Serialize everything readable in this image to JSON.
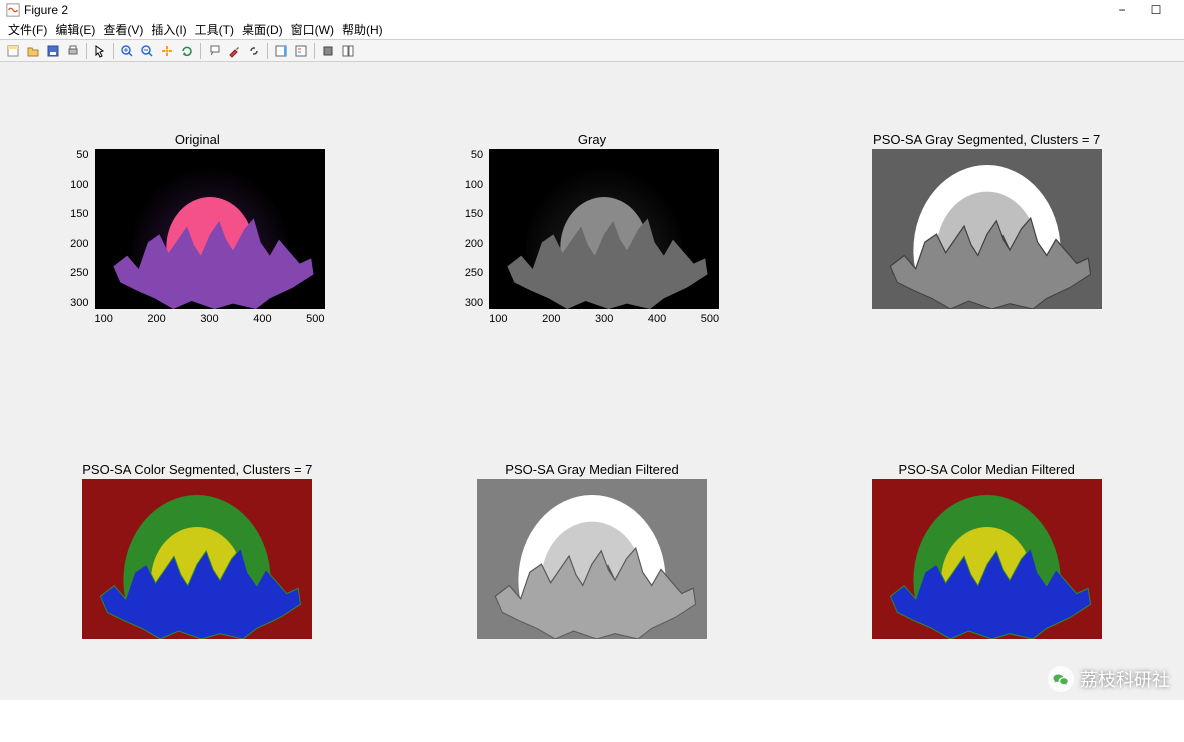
{
  "window": {
    "title": "Figure 2",
    "minimize": "−",
    "maximize": "☐"
  },
  "menu": {
    "items": [
      "文件(F)",
      "编辑(E)",
      "查看(V)",
      "插入(I)",
      "工具(T)",
      "桌面(D)",
      "窗口(W)",
      "帮助(H)"
    ]
  },
  "subplots": [
    {
      "title": "Original",
      "yticks": [
        "50",
        "100",
        "150",
        "200",
        "250",
        "300"
      ],
      "xticks": [
        "100",
        "200",
        "300",
        "400",
        "500"
      ],
      "show_axes": true,
      "bg": "#000000",
      "sun": "#f4518a",
      "halo": "#3a1a4a",
      "mtn": "#8447b0"
    },
    {
      "title": "Gray",
      "yticks": [
        "50",
        "100",
        "150",
        "200",
        "250",
        "300"
      ],
      "xticks": [
        "100",
        "200",
        "300",
        "400",
        "500"
      ],
      "show_axes": true,
      "bg": "#000000",
      "sun": "#8a8a8a",
      "halo": "#2a2a2a",
      "mtn": "#6a6a6a"
    },
    {
      "title": "PSO-SA Gray Segmented, Clusters = 7",
      "show_axes": false,
      "bg": "#606060",
      "sun": "#ffffff",
      "halo": "#ffffff",
      "mtn": "#888888",
      "mtn2": "#404040",
      "variant": "grayseg"
    },
    {
      "title": "PSO-SA Color Segmented, Clusters = 7",
      "show_axes": false,
      "bg": "#8e1212",
      "sun": "#cecb17",
      "halo": "#2f8b2a",
      "mtn": "#1b2fcd",
      "variant": "colorseg"
    },
    {
      "title": "PSO-SA Gray Median Filtered",
      "show_axes": false,
      "bg": "#808080",
      "sun": "#ffffff",
      "halo": "#ffffff",
      "mtn": "#a6a6a6",
      "mtn2": "#5a5a5a",
      "variant": "grayseg"
    },
    {
      "title": "PSO-SA Color Median Filtered",
      "show_axes": false,
      "bg": "#8e1212",
      "sun": "#cecb17",
      "halo": "#2f8b2a",
      "mtn": "#1b2fcd",
      "variant": "colorseg"
    }
  ],
  "watermark": {
    "text": "荔枝科研社"
  }
}
